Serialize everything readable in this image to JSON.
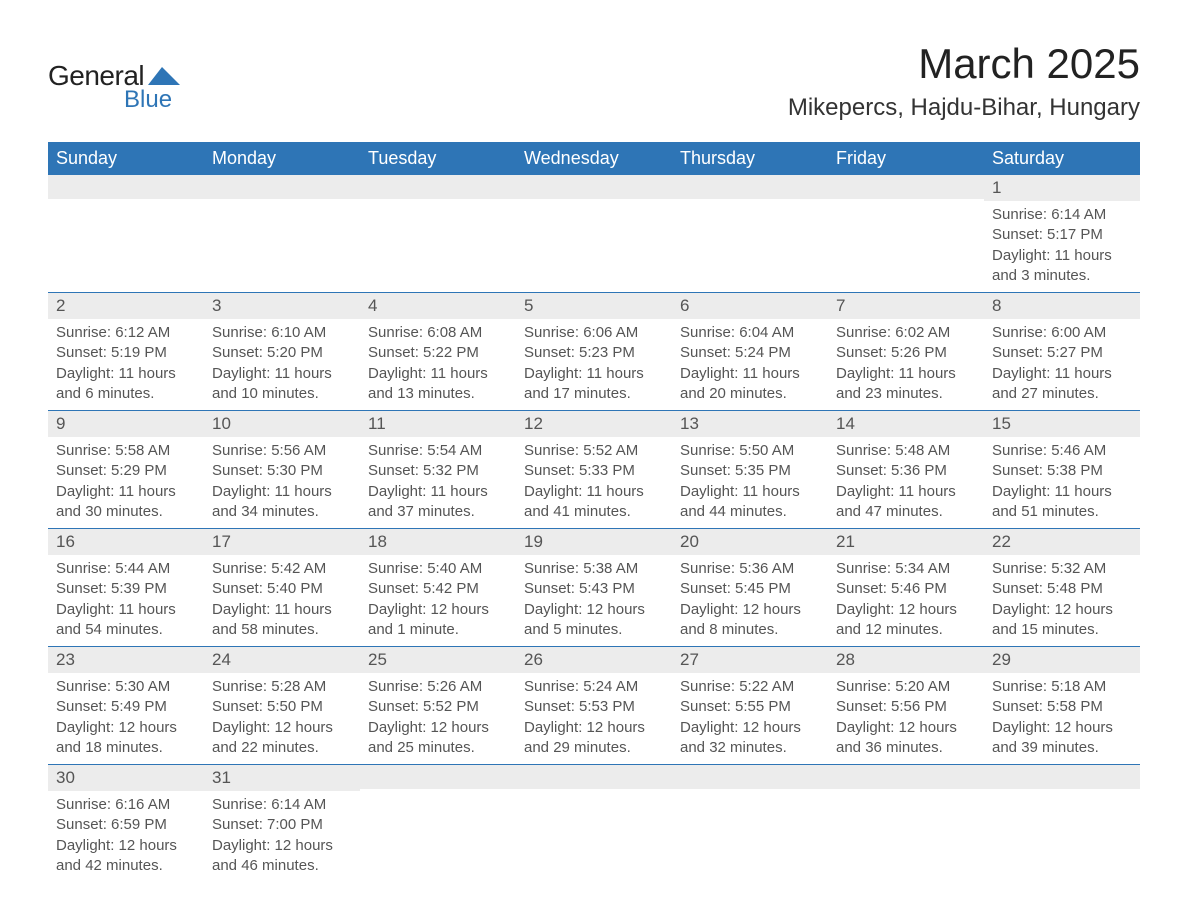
{
  "logo": {
    "text_general": "General",
    "text_blue": "Blue",
    "shape_color": "#2e75b6"
  },
  "title": "March 2025",
  "location": "Mikepercs, Hajdu-Bihar, Hungary",
  "header_bg": "#2e75b6",
  "daynum_bg": "#ececec",
  "row_border": "#2e75b6",
  "text_color": "#555555",
  "day_headers": [
    "Sunday",
    "Monday",
    "Tuesday",
    "Wednesday",
    "Thursday",
    "Friday",
    "Saturday"
  ],
  "weeks": [
    [
      {
        "day": "",
        "sunrise": "",
        "sunset": "",
        "daylight": ""
      },
      {
        "day": "",
        "sunrise": "",
        "sunset": "",
        "daylight": ""
      },
      {
        "day": "",
        "sunrise": "",
        "sunset": "",
        "daylight": ""
      },
      {
        "day": "",
        "sunrise": "",
        "sunset": "",
        "daylight": ""
      },
      {
        "day": "",
        "sunrise": "",
        "sunset": "",
        "daylight": ""
      },
      {
        "day": "",
        "sunrise": "",
        "sunset": "",
        "daylight": ""
      },
      {
        "day": "1",
        "sunrise": "Sunrise: 6:14 AM",
        "sunset": "Sunset: 5:17 PM",
        "daylight": "Daylight: 11 hours and 3 minutes."
      }
    ],
    [
      {
        "day": "2",
        "sunrise": "Sunrise: 6:12 AM",
        "sunset": "Sunset: 5:19 PM",
        "daylight": "Daylight: 11 hours and 6 minutes."
      },
      {
        "day": "3",
        "sunrise": "Sunrise: 6:10 AM",
        "sunset": "Sunset: 5:20 PM",
        "daylight": "Daylight: 11 hours and 10 minutes."
      },
      {
        "day": "4",
        "sunrise": "Sunrise: 6:08 AM",
        "sunset": "Sunset: 5:22 PM",
        "daylight": "Daylight: 11 hours and 13 minutes."
      },
      {
        "day": "5",
        "sunrise": "Sunrise: 6:06 AM",
        "sunset": "Sunset: 5:23 PM",
        "daylight": "Daylight: 11 hours and 17 minutes."
      },
      {
        "day": "6",
        "sunrise": "Sunrise: 6:04 AM",
        "sunset": "Sunset: 5:24 PM",
        "daylight": "Daylight: 11 hours and 20 minutes."
      },
      {
        "day": "7",
        "sunrise": "Sunrise: 6:02 AM",
        "sunset": "Sunset: 5:26 PM",
        "daylight": "Daylight: 11 hours and 23 minutes."
      },
      {
        "day": "8",
        "sunrise": "Sunrise: 6:00 AM",
        "sunset": "Sunset: 5:27 PM",
        "daylight": "Daylight: 11 hours and 27 minutes."
      }
    ],
    [
      {
        "day": "9",
        "sunrise": "Sunrise: 5:58 AM",
        "sunset": "Sunset: 5:29 PM",
        "daylight": "Daylight: 11 hours and 30 minutes."
      },
      {
        "day": "10",
        "sunrise": "Sunrise: 5:56 AM",
        "sunset": "Sunset: 5:30 PM",
        "daylight": "Daylight: 11 hours and 34 minutes."
      },
      {
        "day": "11",
        "sunrise": "Sunrise: 5:54 AM",
        "sunset": "Sunset: 5:32 PM",
        "daylight": "Daylight: 11 hours and 37 minutes."
      },
      {
        "day": "12",
        "sunrise": "Sunrise: 5:52 AM",
        "sunset": "Sunset: 5:33 PM",
        "daylight": "Daylight: 11 hours and 41 minutes."
      },
      {
        "day": "13",
        "sunrise": "Sunrise: 5:50 AM",
        "sunset": "Sunset: 5:35 PM",
        "daylight": "Daylight: 11 hours and 44 minutes."
      },
      {
        "day": "14",
        "sunrise": "Sunrise: 5:48 AM",
        "sunset": "Sunset: 5:36 PM",
        "daylight": "Daylight: 11 hours and 47 minutes."
      },
      {
        "day": "15",
        "sunrise": "Sunrise: 5:46 AM",
        "sunset": "Sunset: 5:38 PM",
        "daylight": "Daylight: 11 hours and 51 minutes."
      }
    ],
    [
      {
        "day": "16",
        "sunrise": "Sunrise: 5:44 AM",
        "sunset": "Sunset: 5:39 PM",
        "daylight": "Daylight: 11 hours and 54 minutes."
      },
      {
        "day": "17",
        "sunrise": "Sunrise: 5:42 AM",
        "sunset": "Sunset: 5:40 PM",
        "daylight": "Daylight: 11 hours and 58 minutes."
      },
      {
        "day": "18",
        "sunrise": "Sunrise: 5:40 AM",
        "sunset": "Sunset: 5:42 PM",
        "daylight": "Daylight: 12 hours and 1 minute."
      },
      {
        "day": "19",
        "sunrise": "Sunrise: 5:38 AM",
        "sunset": "Sunset: 5:43 PM",
        "daylight": "Daylight: 12 hours and 5 minutes."
      },
      {
        "day": "20",
        "sunrise": "Sunrise: 5:36 AM",
        "sunset": "Sunset: 5:45 PM",
        "daylight": "Daylight: 12 hours and 8 minutes."
      },
      {
        "day": "21",
        "sunrise": "Sunrise: 5:34 AM",
        "sunset": "Sunset: 5:46 PM",
        "daylight": "Daylight: 12 hours and 12 minutes."
      },
      {
        "day": "22",
        "sunrise": "Sunrise: 5:32 AM",
        "sunset": "Sunset: 5:48 PM",
        "daylight": "Daylight: 12 hours and 15 minutes."
      }
    ],
    [
      {
        "day": "23",
        "sunrise": "Sunrise: 5:30 AM",
        "sunset": "Sunset: 5:49 PM",
        "daylight": "Daylight: 12 hours and 18 minutes."
      },
      {
        "day": "24",
        "sunrise": "Sunrise: 5:28 AM",
        "sunset": "Sunset: 5:50 PM",
        "daylight": "Daylight: 12 hours and 22 minutes."
      },
      {
        "day": "25",
        "sunrise": "Sunrise: 5:26 AM",
        "sunset": "Sunset: 5:52 PM",
        "daylight": "Daylight: 12 hours and 25 minutes."
      },
      {
        "day": "26",
        "sunrise": "Sunrise: 5:24 AM",
        "sunset": "Sunset: 5:53 PM",
        "daylight": "Daylight: 12 hours and 29 minutes."
      },
      {
        "day": "27",
        "sunrise": "Sunrise: 5:22 AM",
        "sunset": "Sunset: 5:55 PM",
        "daylight": "Daylight: 12 hours and 32 minutes."
      },
      {
        "day": "28",
        "sunrise": "Sunrise: 5:20 AM",
        "sunset": "Sunset: 5:56 PM",
        "daylight": "Daylight: 12 hours and 36 minutes."
      },
      {
        "day": "29",
        "sunrise": "Sunrise: 5:18 AM",
        "sunset": "Sunset: 5:58 PM",
        "daylight": "Daylight: 12 hours and 39 minutes."
      }
    ],
    [
      {
        "day": "30",
        "sunrise": "Sunrise: 6:16 AM",
        "sunset": "Sunset: 6:59 PM",
        "daylight": "Daylight: 12 hours and 42 minutes."
      },
      {
        "day": "31",
        "sunrise": "Sunrise: 6:14 AM",
        "sunset": "Sunset: 7:00 PM",
        "daylight": "Daylight: 12 hours and 46 minutes."
      },
      {
        "day": "",
        "sunrise": "",
        "sunset": "",
        "daylight": ""
      },
      {
        "day": "",
        "sunrise": "",
        "sunset": "",
        "daylight": ""
      },
      {
        "day": "",
        "sunrise": "",
        "sunset": "",
        "daylight": ""
      },
      {
        "day": "",
        "sunrise": "",
        "sunset": "",
        "daylight": ""
      },
      {
        "day": "",
        "sunrise": "",
        "sunset": "",
        "daylight": ""
      }
    ]
  ]
}
